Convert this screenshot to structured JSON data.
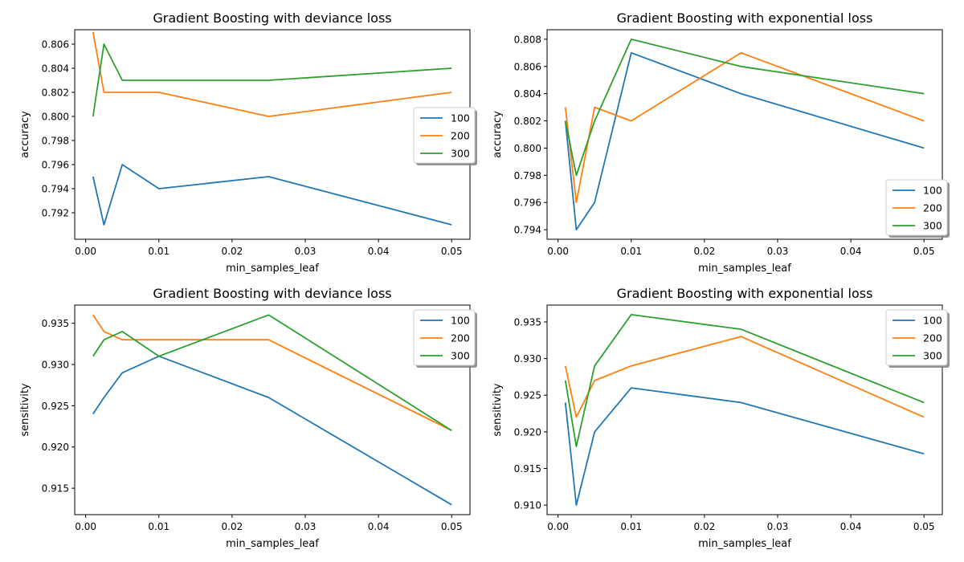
{
  "chart_data": [
    {
      "type": "line",
      "title": "Gradient Boosting with deviance loss",
      "xlabel": "min_samples_leaf",
      "ylabel": "accuracy",
      "x": [
        0.001,
        0.0025,
        0.005,
        0.01,
        0.025,
        0.05
      ],
      "xlim": [
        -0.0015,
        0.0525
      ],
      "ylim": [
        0.7898,
        0.8072
      ],
      "xticks": [
        0.0,
        0.01,
        0.02,
        0.03,
        0.04,
        0.05
      ],
      "xtick_labels": [
        "0.00",
        "0.01",
        "0.02",
        "0.03",
        "0.04",
        "0.05"
      ],
      "yticks": [
        0.792,
        0.794,
        0.796,
        0.798,
        0.8,
        0.802,
        0.804,
        0.806
      ],
      "ytick_labels": [
        "0.792",
        "0.794",
        "0.796",
        "0.798",
        "0.800",
        "0.802",
        "0.804",
        "0.806"
      ],
      "legend_position": "center-right",
      "grid": false,
      "series": [
        {
          "name": "100",
          "color": "#1f77b4",
          "values": [
            0.795,
            0.791,
            0.796,
            0.794,
            0.795,
            0.791
          ]
        },
        {
          "name": "200",
          "color": "#ff7f0e",
          "values": [
            0.807,
            0.802,
            0.802,
            0.802,
            0.8,
            0.802
          ]
        },
        {
          "name": "300",
          "color": "#2ca02c",
          "values": [
            0.8,
            0.806,
            0.803,
            0.803,
            0.803,
            0.804
          ]
        }
      ]
    },
    {
      "type": "line",
      "title": "Gradient Boosting with exponential loss",
      "xlabel": "min_samples_leaf",
      "ylabel": "accuracy",
      "x": [
        0.001,
        0.0025,
        0.005,
        0.01,
        0.025,
        0.05
      ],
      "xlim": [
        -0.0015,
        0.0525
      ],
      "ylim": [
        0.7933,
        0.8087
      ],
      "xticks": [
        0.0,
        0.01,
        0.02,
        0.03,
        0.04,
        0.05
      ],
      "xtick_labels": [
        "0.00",
        "0.01",
        "0.02",
        "0.03",
        "0.04",
        "0.05"
      ],
      "yticks": [
        0.794,
        0.796,
        0.798,
        0.8,
        0.802,
        0.804,
        0.806,
        0.808
      ],
      "ytick_labels": [
        "0.794",
        "0.796",
        "0.798",
        "0.800",
        "0.802",
        "0.804",
        "0.806",
        "0.808"
      ],
      "legend_position": "lower-right",
      "grid": false,
      "series": [
        {
          "name": "100",
          "color": "#1f77b4",
          "values": [
            0.802,
            0.794,
            0.796,
            0.807,
            0.804,
            0.8
          ]
        },
        {
          "name": "200",
          "color": "#ff7f0e",
          "values": [
            0.803,
            0.796,
            0.803,
            0.802,
            0.807,
            0.802
          ]
        },
        {
          "name": "300",
          "color": "#2ca02c",
          "values": [
            0.802,
            0.798,
            0.802,
            0.808,
            0.806,
            0.804
          ]
        }
      ]
    },
    {
      "type": "line",
      "title": "Gradient Boosting with deviance loss",
      "xlabel": "min_samples_leaf",
      "ylabel": "sensitivity",
      "x": [
        0.001,
        0.0025,
        0.005,
        0.01,
        0.025,
        0.05
      ],
      "xlim": [
        -0.0015,
        0.0525
      ],
      "ylim": [
        0.9118,
        0.9372
      ],
      "xticks": [
        0.0,
        0.01,
        0.02,
        0.03,
        0.04,
        0.05
      ],
      "xtick_labels": [
        "0.00",
        "0.01",
        "0.02",
        "0.03",
        "0.04",
        "0.05"
      ],
      "yticks": [
        0.915,
        0.92,
        0.925,
        0.93,
        0.935
      ],
      "ytick_labels": [
        "0.915",
        "0.920",
        "0.925",
        "0.930",
        "0.935"
      ],
      "legend_position": "top-right",
      "grid": false,
      "series": [
        {
          "name": "100",
          "color": "#1f77b4",
          "values": [
            0.924,
            0.926,
            0.929,
            0.931,
            0.926,
            0.913
          ]
        },
        {
          "name": "200",
          "color": "#ff7f0e",
          "values": [
            0.936,
            0.934,
            0.933,
            0.933,
            0.933,
            0.922
          ]
        },
        {
          "name": "300",
          "color": "#2ca02c",
          "values": [
            0.931,
            0.933,
            0.934,
            0.931,
            0.936,
            0.922
          ]
        }
      ]
    },
    {
      "type": "line",
      "title": "Gradient Boosting with exponential loss",
      "xlabel": "min_samples_leaf",
      "ylabel": "sensitivity",
      "x": [
        0.001,
        0.0025,
        0.005,
        0.01,
        0.025,
        0.05
      ],
      "xlim": [
        -0.0015,
        0.0525
      ],
      "ylim": [
        0.9087,
        0.9373
      ],
      "xticks": [
        0.0,
        0.01,
        0.02,
        0.03,
        0.04,
        0.05
      ],
      "xtick_labels": [
        "0.00",
        "0.01",
        "0.02",
        "0.03",
        "0.04",
        "0.05"
      ],
      "yticks": [
        0.91,
        0.915,
        0.92,
        0.925,
        0.93,
        0.935
      ],
      "ytick_labels": [
        "0.910",
        "0.915",
        "0.920",
        "0.925",
        "0.930",
        "0.935"
      ],
      "legend_position": "top-right",
      "grid": false,
      "series": [
        {
          "name": "100",
          "color": "#1f77b4",
          "values": [
            0.924,
            0.91,
            0.92,
            0.926,
            0.924,
            0.917
          ]
        },
        {
          "name": "200",
          "color": "#ff7f0e",
          "values": [
            0.929,
            0.922,
            0.927,
            0.929,
            0.933,
            0.922
          ]
        },
        {
          "name": "300",
          "color": "#2ca02c",
          "values": [
            0.927,
            0.918,
            0.929,
            0.936,
            0.934,
            0.924
          ]
        }
      ]
    }
  ]
}
